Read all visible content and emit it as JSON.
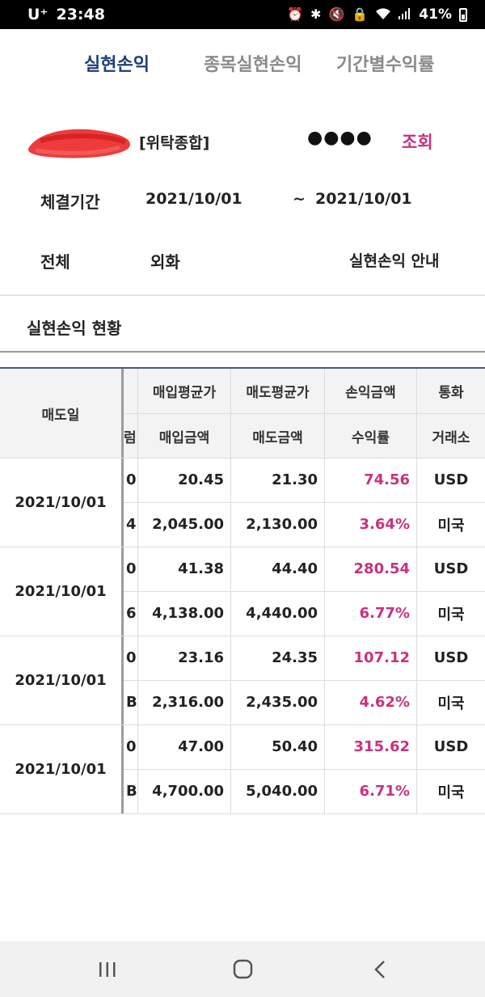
{
  "status_bar": {
    "carrier": "U⁺",
    "time": "23:48",
    "battery": "41%"
  },
  "tabs": [
    {
      "label": "실현손익",
      "active": true
    },
    {
      "label": "종목실현손익",
      "active": false
    },
    {
      "label": "기간별수익률",
      "active": false
    }
  ],
  "account": {
    "type": "[위탁종합]",
    "password_mask": "●●●●",
    "search_label": "조회"
  },
  "period": {
    "label": "체결기간",
    "from": "2021/10/01",
    "separator": "~",
    "to": "2021/10/01"
  },
  "filters": {
    "all": "전체",
    "fx": "외화",
    "guide": "실현손익 안내"
  },
  "section_title": "실현손익 현황",
  "table": {
    "header_date": "매도일",
    "header_clip_top": "",
    "header_clip_bottom": "럼",
    "header_top": [
      "매입평균가",
      "매도평균가",
      "손익금액",
      "통화"
    ],
    "header_bottom": [
      "매입금액",
      "매도금액",
      "수익률",
      "거래소"
    ],
    "rows": [
      {
        "date": "2021/10/01",
        "clip_top": "0",
        "clip_bottom": "4",
        "buy_avg": "20.45",
        "sell_avg": "21.30",
        "pnl": "74.56",
        "currency": "USD",
        "buy_amt": "2,045.00",
        "sell_amt": "2,130.00",
        "rate": "3.64%",
        "exchange": "미국"
      },
      {
        "date": "2021/10/01",
        "clip_top": "0",
        "clip_bottom": "6",
        "buy_avg": "41.38",
        "sell_avg": "44.40",
        "pnl": "280.54",
        "currency": "USD",
        "buy_amt": "4,138.00",
        "sell_amt": "4,440.00",
        "rate": "6.77%",
        "exchange": "미국"
      },
      {
        "date": "2021/10/01",
        "clip_top": "0",
        "clip_bottom": "B",
        "buy_avg": "23.16",
        "sell_avg": "24.35",
        "pnl": "107.12",
        "currency": "USD",
        "buy_amt": "2,316.00",
        "sell_amt": "2,435.00",
        "rate": "4.62%",
        "exchange": "미국"
      },
      {
        "date": "2021/10/01",
        "clip_top": "0",
        "clip_bottom": "B",
        "buy_avg": "47.00",
        "sell_avg": "50.40",
        "pnl": "315.62",
        "currency": "USD",
        "buy_amt": "4,700.00",
        "sell_amt": "5,040.00",
        "rate": "6.71%",
        "exchange": "미국"
      }
    ]
  },
  "colors": {
    "active_tab": "#1e3f78",
    "accent_pink": "#c8327e",
    "header_bg": "#f3f3f3"
  },
  "nav_icons": [
    "recent-apps-icon",
    "home-icon",
    "back-icon"
  ]
}
